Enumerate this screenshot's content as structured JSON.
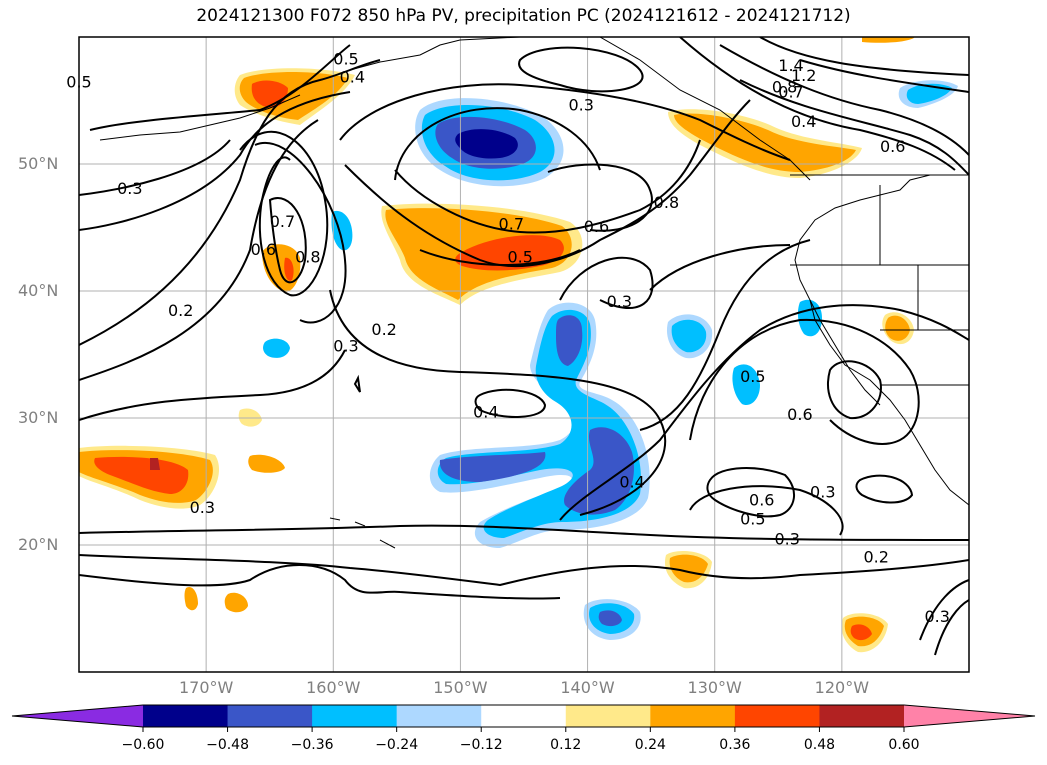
{
  "title": "2024121300 F072 850 hPa PV, precipitation PC (2024121612 - 2024121712)",
  "map": {
    "lon_range": [
      -180,
      -110
    ],
    "lat_range": [
      10,
      60
    ],
    "lat_ticks": [
      {
        "value": 50,
        "label": "50°N"
      },
      {
        "value": 40,
        "label": "40°N"
      },
      {
        "value": 30,
        "label": "30°N"
      },
      {
        "value": 20,
        "label": "20°N"
      }
    ],
    "lon_ticks": [
      {
        "value": -170,
        "label": "170°W"
      },
      {
        "value": -160,
        "label": "160°W"
      },
      {
        "value": -150,
        "label": "150°W"
      },
      {
        "value": -140,
        "label": "140°W"
      },
      {
        "value": -130,
        "label": "130°W"
      },
      {
        "value": -120,
        "label": "120°W"
      }
    ],
    "grid": true,
    "colors": {
      "neg_strong": "#00008b",
      "neg_mid": "#3a56c8",
      "neg_cyan": "#00bfff",
      "neg_light": "#add8ff",
      "pos_light": "#ffe98a",
      "pos_orange": "#ffa500",
      "pos_red": "#ff4500",
      "pos_dark": "#b22222"
    },
    "contour_labels": [
      {
        "text": "0.5",
        "lon": -180,
        "lat": 56.5
      },
      {
        "text": "0.5",
        "lon": -159,
        "lat": 58.3
      },
      {
        "text": "0.4",
        "lon": -158.5,
        "lat": 56.9
      },
      {
        "text": "0.3",
        "lon": -140.5,
        "lat": 54.7
      },
      {
        "text": "0.3",
        "lon": -176,
        "lat": 48.1
      },
      {
        "text": "0.7",
        "lon": -164,
        "lat": 45.5
      },
      {
        "text": "0.8",
        "lon": -162,
        "lat": 42.7
      },
      {
        "text": "0.6",
        "lon": -165.5,
        "lat": 43.3
      },
      {
        "text": "0.2",
        "lon": -172,
        "lat": 38.5
      },
      {
        "text": "0.2",
        "lon": -156,
        "lat": 37.0
      },
      {
        "text": "0.3",
        "lon": -159,
        "lat": 35.7
      },
      {
        "text": "0.7",
        "lon": -146,
        "lat": 45.3
      },
      {
        "text": "0.5",
        "lon": -145.3,
        "lat": 42.7
      },
      {
        "text": "0.6",
        "lon": -139.3,
        "lat": 45.1
      },
      {
        "text": "0.8",
        "lon": -133.8,
        "lat": 47.0
      },
      {
        "text": "0.3",
        "lon": -137.5,
        "lat": 39.2
      },
      {
        "text": "1.4",
        "lon": -124,
        "lat": 57.8
      },
      {
        "text": "1.2",
        "lon": -123,
        "lat": 57.0
      },
      {
        "text": "0.8",
        "lon": -124.5,
        "lat": 56.1
      },
      {
        "text": "0.7",
        "lon": -124,
        "lat": 55.7
      },
      {
        "text": "0.4",
        "lon": -123,
        "lat": 53.4
      },
      {
        "text": "0.6",
        "lon": -116,
        "lat": 51.4
      },
      {
        "text": "0.5",
        "lon": -127,
        "lat": 33.3
      },
      {
        "text": "0.6",
        "lon": -123.3,
        "lat": 30.3
      },
      {
        "text": "0.4",
        "lon": -148,
        "lat": 30.5
      },
      {
        "text": "0.4",
        "lon": -136.5,
        "lat": 25.0
      },
      {
        "text": "0.3",
        "lon": -121.5,
        "lat": 24.2
      },
      {
        "text": "0.6",
        "lon": -126.3,
        "lat": 23.6
      },
      {
        "text": "0.5",
        "lon": -127,
        "lat": 22.1
      },
      {
        "text": "0.3",
        "lon": -124.3,
        "lat": 20.5
      },
      {
        "text": "0.3",
        "lon": -170.3,
        "lat": 23.0
      },
      {
        "text": "0.2",
        "lon": -117.3,
        "lat": 19.1
      },
      {
        "text": "0.3",
        "lon": -112.5,
        "lat": 14.4
      }
    ]
  },
  "colorbar": {
    "ticks": [
      "−0.60",
      "−0.48",
      "−0.36",
      "−0.24",
      "−0.12",
      "0.12",
      "0.24",
      "0.36",
      "0.48",
      "0.60"
    ],
    "colors": [
      "#8a2be2",
      "#00008b",
      "#3a56c8",
      "#00bfff",
      "#add8ff",
      "#ffffff",
      "#ffe98a",
      "#ffa500",
      "#ff4500",
      "#b22222",
      "#ff82a8"
    ]
  }
}
